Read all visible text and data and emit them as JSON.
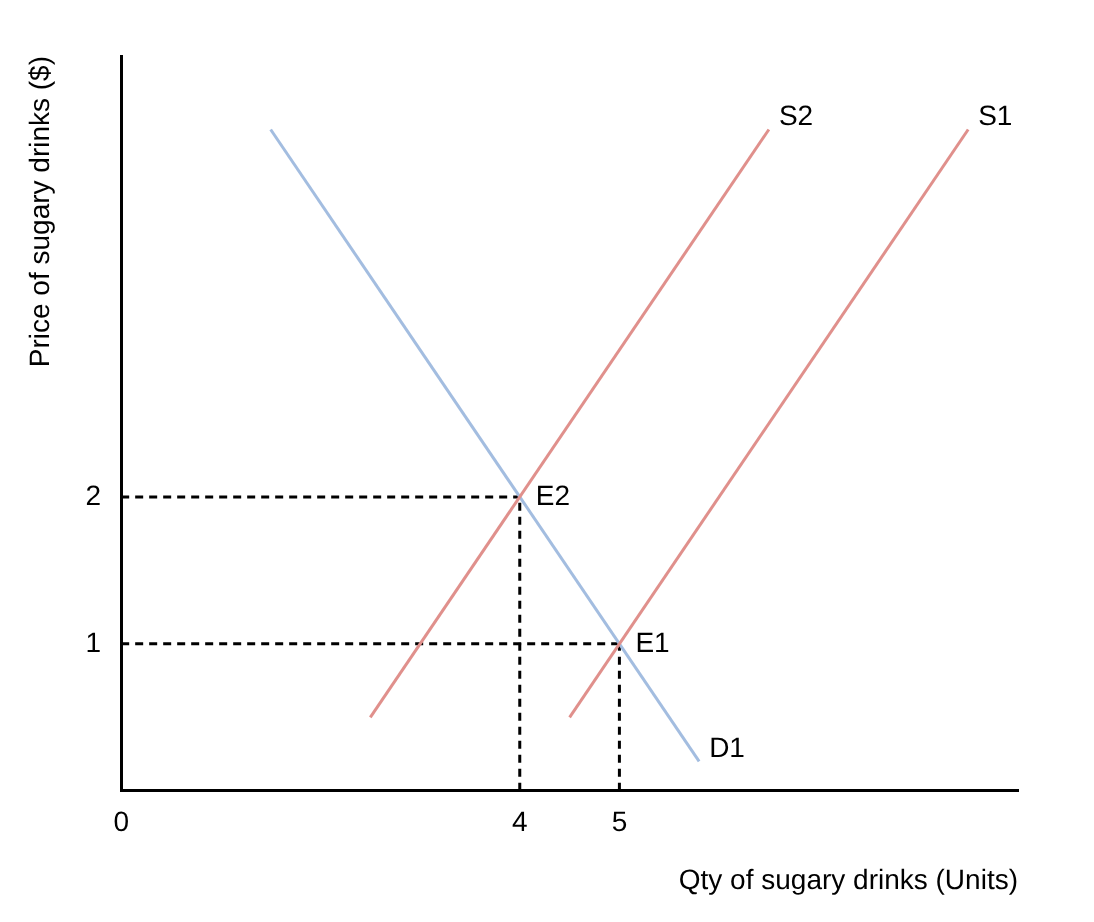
{
  "chart_data": {
    "type": "line",
    "xlabel": "Qty of sugary drinks (Units)",
    "ylabel": "Price of sugary drinks ($)",
    "xlim": [
      0,
      9
    ],
    "ylim": [
      0,
      5
    ],
    "xticks": [
      0,
      4,
      5
    ],
    "yticks": [
      1,
      2
    ],
    "grid": false,
    "legend": false,
    "marker": "none",
    "series": [
      {
        "name": "S2",
        "color": "#e0908c",
        "x": [
          2.5,
          6.5
        ],
        "values": [
          0.5,
          4.5
        ]
      },
      {
        "name": "S1",
        "color": "#e0908c",
        "x": [
          4.5,
          8.5
        ],
        "values": [
          0.5,
          4.5
        ]
      },
      {
        "name": "D1",
        "color": "#a3bde0",
        "x": [
          1.5,
          5.8
        ],
        "values": [
          4.5,
          0.2
        ]
      },
      {
        "color": "#000000",
        "line_style": "dashed",
        "x": [
          0,
          4
        ],
        "values": [
          2,
          2
        ]
      },
      {
        "color": "#000000",
        "line_style": "dashed",
        "x": [
          4,
          4
        ],
        "values": [
          0,
          2
        ]
      },
      {
        "color": "#000000",
        "line_style": "dashed",
        "x": [
          0,
          5
        ],
        "values": [
          1,
          1
        ]
      },
      {
        "color": "#000000",
        "line_style": "dashed",
        "x": [
          5,
          5
        ],
        "values": [
          0,
          1
        ]
      }
    ],
    "annotations": [
      {
        "text": "E2",
        "x": 4,
        "y": 2
      },
      {
        "text": "E1",
        "x": 5,
        "y": 1
      }
    ]
  }
}
